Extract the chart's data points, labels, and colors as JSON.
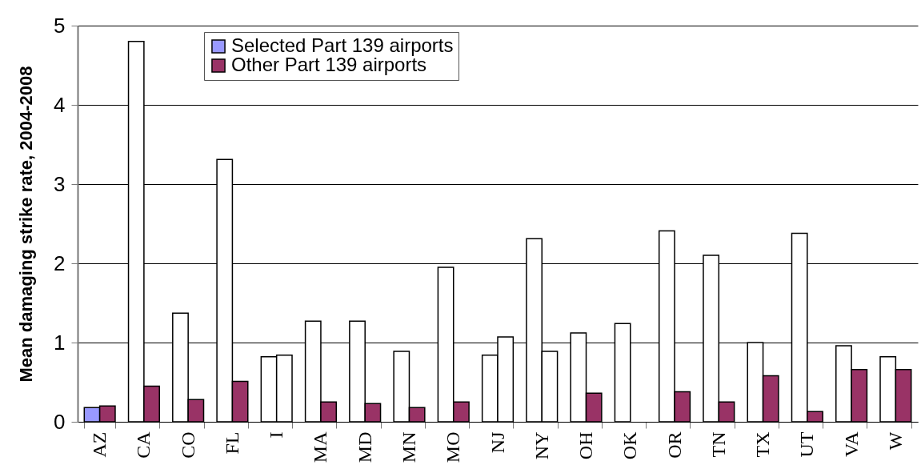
{
  "chart_data": {
    "type": "bar",
    "ylabel": "Mean damaging strike rate, 2004-2008",
    "categories": [
      "AZ",
      "CA",
      "CO",
      "FL",
      "I",
      "MA",
      "MD",
      "MN",
      "MO",
      "NJ",
      "NY",
      "OH",
      "OK",
      "OR",
      "TN",
      "TX",
      "UT",
      "VA",
      "W"
    ],
    "series": [
      {
        "name": "Selected Part 139 airports",
        "color": "#9999ff",
        "colors": [
          "#9999ff",
          "#ffffff",
          "#ffffff",
          "#ffffff",
          "#ffffff",
          "#ffffff",
          "#ffffff",
          "#ffffff",
          "#ffffff",
          "#ffffff",
          "#ffffff",
          "#ffffff",
          "#ffffff",
          "#ffffff",
          "#ffffff",
          "#ffffff",
          "#ffffff",
          "#ffffff",
          "#ffffff"
        ],
        "values": [
          0.18,
          4.8,
          1.37,
          3.31,
          0.82,
          1.27,
          1.27,
          0.89,
          1.95,
          0.84,
          2.31,
          1.12,
          1.24,
          2.41,
          2.1,
          1.0,
          2.38,
          0.96,
          0.82
        ]
      },
      {
        "name": "Other Part 139 airports",
        "color": "#993366",
        "colors": [
          "#993366",
          "#993366",
          "#993366",
          "#993366",
          "#ffffff",
          "#993366",
          "#993366",
          "#993366",
          "#993366",
          "#ffffff",
          "#ffffff",
          "#993366",
          null,
          "#993366",
          "#993366",
          "#993366",
          "#993366",
          "#993366",
          "#993366"
        ],
        "values": [
          0.2,
          0.45,
          0.28,
          0.51,
          0.84,
          0.25,
          0.23,
          0.18,
          0.25,
          1.07,
          0.89,
          0.36,
          null,
          0.38,
          0.25,
          0.58,
          0.13,
          0.66,
          0.66
        ]
      }
    ],
    "ylim": [
      0,
      5
    ],
    "yticks": [
      0,
      1,
      2,
      3,
      4,
      5
    ],
    "grid": "y",
    "legend": "top left"
  }
}
